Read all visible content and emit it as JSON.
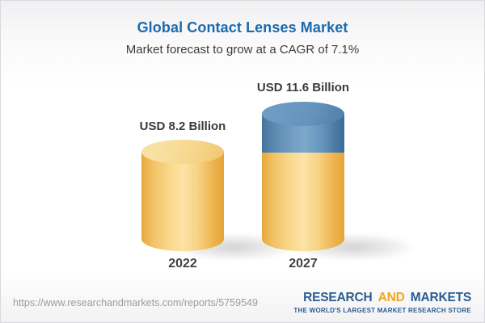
{
  "header": {
    "title": "Global Contact Lenses Market",
    "subtitle": "Market forecast to grow at a CAGR of 7.1%"
  },
  "chart_data": {
    "type": "bar",
    "variant": "3d-cylinder",
    "title": "Global Contact Lenses Market",
    "subtitle": "Market forecast to grow at a CAGR of 7.1%",
    "cagr_percent": 7.1,
    "unit": "USD Billion",
    "categories": [
      "2022",
      "2027"
    ],
    "values": [
      8.2,
      11.6
    ],
    "xlabel": "",
    "ylabel": "",
    "axes": "none",
    "grid": false,
    "legend": "none",
    "bars": [
      {
        "year": "2022",
        "value": 8.2,
        "value_label": "USD 8.2 Billion",
        "color": "#f3c567"
      },
      {
        "year": "2027",
        "value": 11.6,
        "value_label": "USD 11.6 Billion",
        "color": "#f3c567",
        "growth_segment_color": "#5d8ab1",
        "growth_segment_value": 3.4
      }
    ]
  },
  "footer": {
    "url": "https://www.researchandmarkets.com/reports/5759549",
    "logo": {
      "word1": "RESEARCH",
      "word2": "AND",
      "word3": "MARKETS",
      "tagline": "THE WORLD'S LARGEST MARKET RESEARCH STORE"
    }
  },
  "colors": {
    "title_blue": "#1b6aad",
    "text_dark": "#3d3d3d",
    "bar_yellow": "#f3c567",
    "bar_yellow_edge": "#e7a83d",
    "bar_blue": "#5d8ab1",
    "bar_blue_edge": "#3a6b96",
    "url_gray": "#9c9c9e",
    "logo_blue": "#2b5c8f",
    "logo_orange": "#efa723",
    "background_top": "#f0f0f2",
    "background_main": "#ffffff"
  }
}
